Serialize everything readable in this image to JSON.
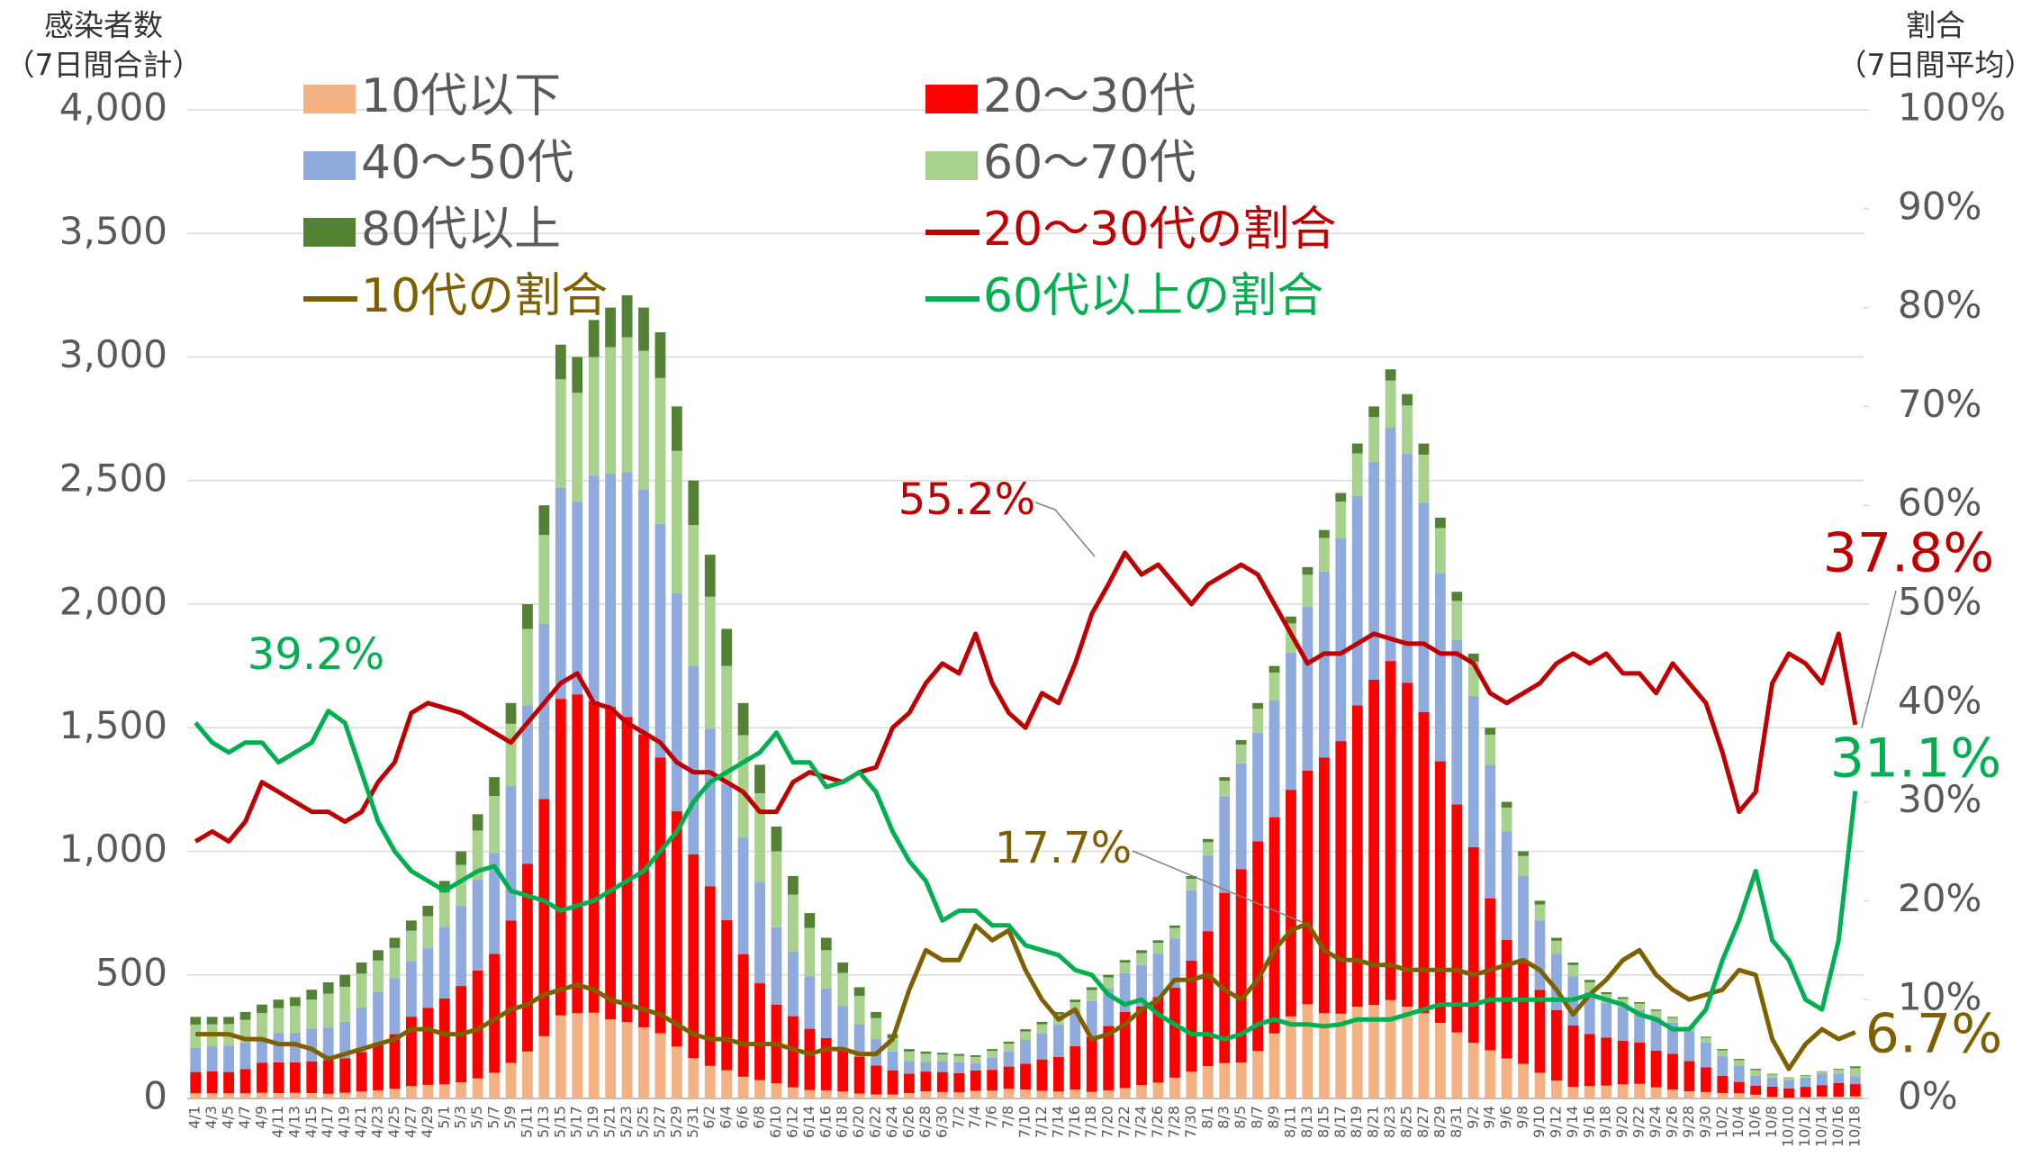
{
  "chart_data": {
    "type": "bar",
    "stacked": true,
    "y_axis_title": [
      "感染者数",
      "（7日間合計）"
    ],
    "y2_axis_title": [
      "割合",
      "（7日間平均）"
    ],
    "categories": [
      "4/1",
      "4/3",
      "4/5",
      "4/7",
      "4/9",
      "4/11",
      "4/13",
      "4/15",
      "4/17",
      "4/19",
      "4/21",
      "4/23",
      "4/25",
      "4/27",
      "4/29",
      "5/1",
      "5/3",
      "5/5",
      "5/7",
      "5/9",
      "5/11",
      "5/13",
      "5/15",
      "5/17",
      "5/19",
      "5/21",
      "5/23",
      "5/25",
      "5/27",
      "5/29",
      "5/31",
      "6/2",
      "6/4",
      "6/6",
      "6/8",
      "6/10",
      "6/12",
      "6/14",
      "6/16",
      "6/18",
      "6/20",
      "6/22",
      "6/24",
      "6/26",
      "6/28",
      "6/30",
      "7/2",
      "7/4",
      "7/6",
      "7/8",
      "7/10",
      "7/12",
      "7/14",
      "7/16",
      "7/18",
      "7/20",
      "7/22",
      "7/24",
      "7/26",
      "7/28",
      "7/30",
      "8/1",
      "8/3",
      "8/5",
      "8/7",
      "8/9",
      "8/11",
      "8/13",
      "8/15",
      "8/17",
      "8/19",
      "8/21",
      "8/23",
      "8/25",
      "8/27",
      "8/29",
      "8/31",
      "9/2",
      "9/4",
      "9/6",
      "9/8",
      "9/10",
      "9/12",
      "9/14",
      "9/16",
      "9/18",
      "9/20",
      "9/22",
      "9/24",
      "9/26",
      "9/28",
      "9/30",
      "10/2",
      "10/4",
      "10/6",
      "10/8",
      "10/10",
      "10/12",
      "10/14",
      "10/16",
      "10/18"
    ],
    "series": [
      {
        "name": "10代以下",
        "color": "#f4b183",
        "values": [
          21,
          21,
          21,
          21,
          23,
          22,
          23,
          22,
          19,
          23,
          28,
          33,
          39,
          50,
          55,
          57,
          65,
          81,
          104,
          144,
          190,
          252,
          336,
          345,
          347,
          320,
          309,
          288,
          264,
          210,
          163,
          132,
          114,
          88,
          74,
          61,
          45,
          34,
          33,
          28,
          20,
          16,
          16,
          22,
          29,
          26,
          25,
          31,
          32,
          39,
          36,
          31,
          28,
          36,
          27,
          33,
          42,
          54,
          64,
          84,
          108,
          131,
          143,
          145,
          192,
          263,
          332,
          381,
          345,
          343,
          371,
          378,
          398,
          371,
          345,
          306,
          267,
          225,
          195,
          162,
          140,
          104,
          72,
          47,
          50,
          52,
          57,
          59,
          45,
          36,
          29,
          26,
          22,
          21,
          15,
          6,
          3,
          5,
          8,
          7,
          9
        ]
      },
      {
        "name": "20～30代",
        "color": "#ff0000",
        "values": [
          86,
          89,
          86,
          98,
          122,
          124,
          123,
          128,
          136,
          140,
          160,
          192,
          221,
          281,
          312,
          348,
          390,
          437,
          481,
          576,
          760,
          960,
          1281,
          1290,
          1260,
          1264,
          1235,
          1184,
          1116,
          952,
          825,
          726,
          608,
          496,
          392,
          319,
          288,
          248,
          211,
          176,
          149,
          117,
          98,
          78,
          80,
          81,
          77,
          82,
          84,
          90,
          105,
          127,
          140,
          176,
          221,
          260,
          308,
          318,
          346,
          364,
          450,
          546,
          689,
          783,
          848,
          875,
          917,
          946,
          1035,
          1103,
          1219,
          1316,
          1372,
          1311,
          1219,
          1058,
          923,
          792,
          615,
          480,
          410,
          336,
          286,
          248,
          211,
          194,
          176,
          168,
          148,
          145,
          122,
          100,
          70,
          46,
          37,
          42,
          38,
          42,
          46,
          56,
          49
        ]
      },
      {
        "name": "40～50代",
        "color": "#8faadc",
        "values": [
          98,
          101,
          107,
          105,
          98,
          118,
          120,
          132,
          131,
          147,
          180,
          207,
          227,
          223,
          241,
          290,
          325,
          367,
          409,
          544,
          640,
          708,
          853,
          780,
          913,
          944,
          991,
          992,
          945,
          882,
          762,
          638,
          551,
          472,
          411,
          313,
          261,
          213,
          201,
          170,
          132,
          108,
          76,
          52,
          39,
          45,
          44,
          29,
          49,
          61,
          96,
          105,
          131,
          136,
          146,
          154,
          157,
          168,
          176,
          199,
          283,
          305,
          390,
          428,
          440,
          472,
          555,
          662,
          752,
          820,
          848,
          882,
          944,
          926,
          847,
          763,
          665,
          612,
          540,
          438,
          350,
          280,
          227,
          200,
          169,
          141,
          138,
          130,
          138,
          126,
          119,
          101,
          80,
          64,
          40,
          36,
          32,
          38,
          46,
          38,
          32
        ]
      },
      {
        "name": "60～70代",
        "color": "#a9d18e",
        "values": [
          94,
          89,
          87,
          94,
          103,
          102,
          108,
          118,
          138,
          142,
          137,
          126,
          122,
          125,
          129,
          139,
          165,
          199,
          230,
          252,
          310,
          360,
          440,
          440,
          480,
          512,
          545,
          561,
          590,
          576,
          570,
          534,
          477,
          414,
          358,
          307,
          231,
          195,
          155,
          134,
          114,
          84,
          54,
          38,
          33,
          26,
          27,
          26,
          28,
          32,
          34,
          37,
          41,
          42,
          45,
          43,
          43,
          48,
          44,
          43,
          48,
          55,
          63,
          76,
          97,
          113,
          118,
          130,
          136,
          149,
          172,
          181,
          191,
          196,
          194,
          181,
          158,
          139,
          122,
          97,
          81,
          65,
          53,
          45,
          40,
          35,
          32,
          27,
          24,
          19,
          16,
          19,
          23,
          24,
          23,
          13,
          10,
          8,
          8,
          16,
          33
        ]
      },
      {
        "name": "80代以上",
        "color": "#548235",
        "values": [
          31,
          30,
          29,
          32,
          34,
          34,
          36,
          40,
          46,
          48,
          45,
          42,
          41,
          41,
          43,
          46,
          55,
          66,
          76,
          84,
          100,
          120,
          140,
          145,
          150,
          160,
          170,
          175,
          185,
          180,
          180,
          170,
          150,
          130,
          115,
          100,
          75,
          60,
          50,
          42,
          35,
          25,
          16,
          10,
          9,
          7,
          7,
          7,
          7,
          8,
          9,
          10,
          10,
          10,
          11,
          10,
          10,
          12,
          10,
          10,
          11,
          13,
          15,
          18,
          23,
          27,
          28,
          31,
          32,
          35,
          40,
          43,
          45,
          46,
          45,
          42,
          37,
          32,
          28,
          23,
          19,
          15,
          12,
          10,
          10,
          8,
          7,
          6,
          5,
          4,
          4,
          4,
          5,
          5,
          5,
          3,
          2,
          2,
          2,
          3,
          7
        ]
      },
      {
        "name": "20～30代の割合",
        "type": "line",
        "axis": "y2",
        "color": "#c00000",
        "values": [
          26,
          27,
          26,
          28,
          32,
          31,
          30,
          29,
          29,
          28,
          29,
          32,
          34,
          39,
          40,
          39.5,
          39,
          38,
          37,
          36,
          38,
          40,
          42,
          43,
          40,
          39.5,
          38,
          37,
          36,
          34,
          33,
          33,
          32,
          31,
          29,
          29,
          32,
          33,
          32.5,
          32,
          33,
          33.5,
          37.5,
          39,
          42,
          44,
          43,
          47,
          42,
          39,
          37.5,
          41,
          40,
          44,
          49,
          52,
          55.2,
          53,
          54,
          52,
          50,
          52,
          53,
          54,
          53,
          50,
          47,
          44,
          45,
          45,
          46,
          47,
          46.5,
          46,
          46,
          45,
          45,
          44,
          41,
          40,
          41,
          42,
          44,
          45,
          44,
          45,
          43,
          43,
          41,
          44,
          42,
          40,
          35,
          29,
          31,
          42,
          45,
          44,
          42,
          47,
          37.8
        ]
      },
      {
        "name": "10代の割合",
        "type": "line",
        "axis": "y2",
        "color": "#7f6000",
        "values": [
          6.5,
          6.5,
          6.5,
          6,
          6,
          5.5,
          5.5,
          5,
          4,
          4.5,
          5,
          5.5,
          6,
          7,
          7,
          6.5,
          6.5,
          7,
          8,
          9,
          9.5,
          10.5,
          11,
          11.5,
          11,
          10,
          9.5,
          9,
          8.5,
          7.5,
          6.5,
          6,
          6,
          5.5,
          5.5,
          5.5,
          5,
          4.5,
          5,
          5,
          4.5,
          4.5,
          6,
          11,
          15,
          14,
          14,
          17.5,
          16,
          17,
          13,
          10,
          8,
          9,
          6,
          6.5,
          7.5,
          9,
          10,
          12,
          12,
          12.5,
          11,
          10,
          12,
          15,
          17,
          17.7,
          15,
          14,
          14,
          13.5,
          13.5,
          13,
          13,
          13,
          13,
          12.5,
          13,
          13.5,
          14,
          13,
          11,
          8.5,
          10.5,
          12,
          14,
          15,
          12.5,
          11,
          10,
          10.5,
          11,
          13,
          12.5,
          6,
          3,
          5.5,
          7,
          6,
          6.7
        ]
      },
      {
        "name": "60代以上の割合",
        "type": "line",
        "axis": "y2",
        "color": "#00b050",
        "values": [
          38,
          36,
          35,
          36,
          36,
          34,
          35,
          36,
          39.2,
          38,
          33,
          28,
          25,
          23,
          22,
          21,
          22,
          23,
          23.5,
          21,
          20.5,
          20,
          19,
          19.5,
          20,
          21,
          22,
          23,
          25,
          27,
          30,
          32,
          33,
          34,
          35,
          37,
          34,
          34,
          31.5,
          32,
          33,
          31,
          27,
          24,
          22,
          18,
          19,
          19,
          17.5,
          17.5,
          15.5,
          15,
          14.5,
          13,
          12.5,
          10.5,
          9.5,
          10,
          8.5,
          7.5,
          6.5,
          6.5,
          6,
          6.5,
          7.5,
          8,
          7.5,
          7.5,
          7.3,
          7.5,
          8,
          8,
          8,
          8.5,
          9,
          9.5,
          9.5,
          9.5,
          10,
          10,
          10,
          10,
          10,
          10,
          10.5,
          10,
          9.5,
          8.5,
          8,
          7,
          7,
          9,
          14,
          18,
          23,
          16,
          14,
          10,
          9,
          16,
          31.1
        ]
      }
    ],
    "annotations": [
      {
        "text": "39.2%",
        "color": "#00b050"
      },
      {
        "text": "55.2%",
        "color": "#c00000"
      },
      {
        "text": "17.7%",
        "color": "#7f6000"
      },
      {
        "text": "37.8%",
        "color": "#c00000"
      },
      {
        "text": "31.1%",
        "color": "#00b050"
      },
      {
        "text": "6.7%",
        "color": "#7f6000"
      }
    ],
    "ylim": [
      0,
      4000
    ],
    "yticks": [
      0,
      500,
      {
        "value": 1000,
        "label": "1,000"
      },
      {
        "value": 1500,
        "label": "1,500"
      },
      {
        "value": 2000,
        "label": "2,000"
      },
      {
        "value": 2500,
        "label": "2,500"
      },
      {
        "value": 3000,
        "label": "3,000"
      },
      {
        "value": 3500,
        "label": "3,500"
      },
      {
        "value": 4000,
        "label": "4,000"
      }
    ],
    "y2lim": [
      0,
      100
    ],
    "y2ticks": [
      {
        "value": 0,
        "label": "0%"
      },
      {
        "value": 10,
        "label": "10%"
      },
      {
        "value": 20,
        "label": "20%"
      },
      {
        "value": 30,
        "label": "30%"
      },
      {
        "value": 40,
        "label": "40%"
      },
      {
        "value": 50,
        "label": "50%"
      },
      {
        "value": 60,
        "label": "60%"
      },
      {
        "value": 70,
        "label": "70%"
      },
      {
        "value": 80,
        "label": "80%"
      },
      {
        "value": 90,
        "label": "90%"
      },
      {
        "value": 100,
        "label": "100%"
      }
    ],
    "grid": true
  }
}
